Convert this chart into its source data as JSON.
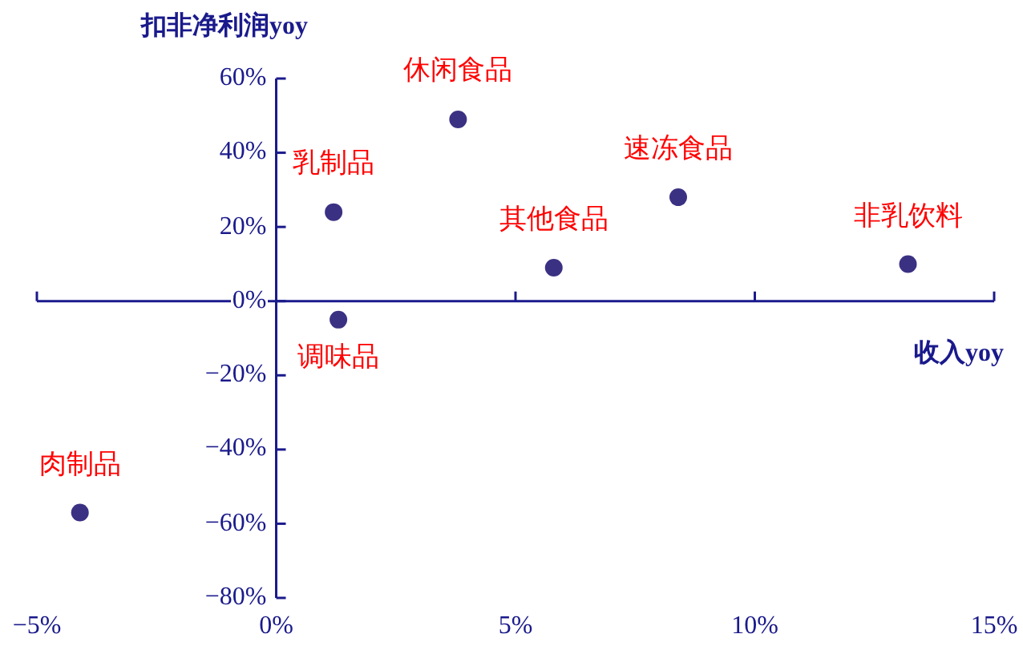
{
  "chart_data": {
    "type": "scatter",
    "xlabel": "收入yoy",
    "ylabel": "扣非净利润yoy",
    "x": [
      1.2,
      1.3,
      3.8,
      5.8,
      8.4,
      13.2,
      -4.1
    ],
    "series": [
      {
        "color": "#3b3183",
        "values": [
          24,
          -5,
          49,
          9,
          28,
          10,
          -57
        ]
      }
    ],
    "ref_lines": [
      {
        "axis": "y",
        "value": 0,
        "color": "#1a1a8c"
      }
    ],
    "marker": "circle",
    "grid": false,
    "legend": false,
    "xlim": [
      -5,
      15
    ],
    "ylim": [
      -80,
      60
    ],
    "xticks": [
      {
        "value": -5,
        "label": "−5%"
      },
      {
        "value": 0,
        "label": "0%"
      },
      {
        "value": 5,
        "label": "5%"
      },
      {
        "value": 10,
        "label": "10%"
      },
      {
        "value": 15,
        "label": "15%"
      }
    ],
    "yticks": [
      {
        "value": -80,
        "label": "−80%"
      },
      {
        "value": -60,
        "label": "−60%"
      },
      {
        "value": -40,
        "label": "−40%"
      },
      {
        "value": -20,
        "label": "−20%"
      },
      {
        "value": 0,
        "label": "0%"
      },
      {
        "value": 20,
        "label": "20%"
      },
      {
        "value": 40,
        "label": "40%"
      },
      {
        "value": 60,
        "label": "60%"
      }
    ],
    "annotations": [
      {
        "text": "乳制品",
        "x": 1.2,
        "y": 24
      },
      {
        "text": "调味品",
        "x": 1.3,
        "y": -5
      },
      {
        "text": "休闲食品",
        "x": 3.8,
        "y": 49
      },
      {
        "text": "其他食品",
        "x": 5.8,
        "y": 9
      },
      {
        "text": "速冻食品",
        "x": 8.4,
        "y": 28
      },
      {
        "text": "非乳饮料",
        "x": 13.2,
        "y": 10
      },
      {
        "text": "肉制品",
        "x": -4.1,
        "y": -57
      }
    ]
  }
}
